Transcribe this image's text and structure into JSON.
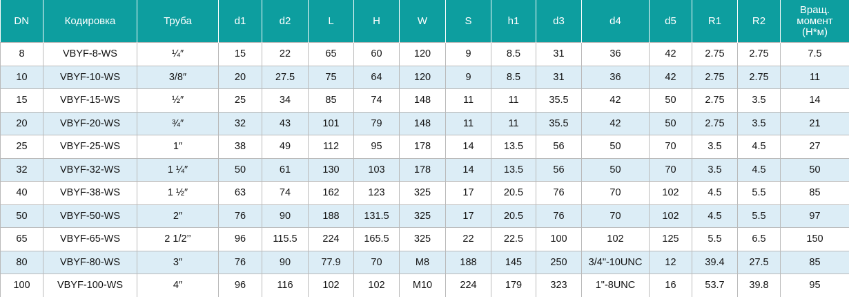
{
  "table": {
    "header": [
      "DN",
      "Кодировка",
      "Труба",
      "d1",
      "d2",
      "L",
      "H",
      "W",
      "S",
      "h1",
      "d3",
      "d4",
      "d5",
      "R1",
      "R2",
      "Вращ. момент (Н*м)"
    ],
    "rows": [
      [
        "8",
        "VBYF-8-WS",
        "¼″",
        "15",
        "22",
        "65",
        "60",
        "120",
        "9",
        "8.5",
        "31",
        "36",
        "42",
        "2.75",
        "2.75",
        "7.5"
      ],
      [
        "10",
        "VBYF-10-WS",
        "3/8″",
        "20",
        "27.5",
        "75",
        "64",
        "120",
        "9",
        "8.5",
        "31",
        "36",
        "42",
        "2.75",
        "2.75",
        "11"
      ],
      [
        "15",
        "VBYF-15-WS",
        "½″",
        "25",
        "34",
        "85",
        "74",
        "148",
        "11",
        "11",
        "35.5",
        "42",
        "50",
        "2.75",
        "3.5",
        "14"
      ],
      [
        "20",
        "VBYF-20-WS",
        "¾″",
        "32",
        "43",
        "101",
        "79",
        "148",
        "11",
        "11",
        "35.5",
        "42",
        "50",
        "2.75",
        "3.5",
        "21"
      ],
      [
        "25",
        "VBYF-25-WS",
        "1″",
        "38",
        "49",
        "112",
        "95",
        "178",
        "14",
        "13.5",
        "56",
        "50",
        "70",
        "3.5",
        "4.5",
        "27"
      ],
      [
        "32",
        "VBYF-32-WS",
        "1 ¼″",
        "50",
        "61",
        "130",
        "103",
        "178",
        "14",
        "13.5",
        "56",
        "50",
        "70",
        "3.5",
        "4.5",
        "50"
      ],
      [
        "40",
        "VBYF-38-WS",
        "1 ½″",
        "63",
        "74",
        "162",
        "123",
        "325",
        "17",
        "20.5",
        "76",
        "70",
        "102",
        "4.5",
        "5.5",
        "85"
      ],
      [
        "50",
        "VBYF-50-WS",
        "2″",
        "76",
        "90",
        "188",
        "131.5",
        "325",
        "17",
        "20.5",
        "76",
        "70",
        "102",
        "4.5",
        "5.5",
        "97"
      ],
      [
        "65",
        "VBYF-65-WS",
        "2 1/2’’",
        "96",
        "115.5",
        "224",
        "165.5",
        "325",
        "22",
        "22.5",
        "100",
        "102",
        "125",
        "5.5",
        "6.5",
        "150"
      ],
      [
        "80",
        "VBYF-80-WS",
        "3″",
        "76",
        "90",
        "77.9",
        "70",
        "M8",
        "188",
        "145",
        "250",
        "3/4\"-10UNC",
        "12",
        "39.4",
        "27.5",
        "85"
      ],
      [
        "100",
        "VBYF-100-WS",
        "4″",
        "96",
        "116",
        "102",
        "102",
        "M10",
        "224",
        "179",
        "323",
        "1\"-8UNC",
        "16",
        "53.7",
        "39.8",
        "95"
      ]
    ]
  }
}
